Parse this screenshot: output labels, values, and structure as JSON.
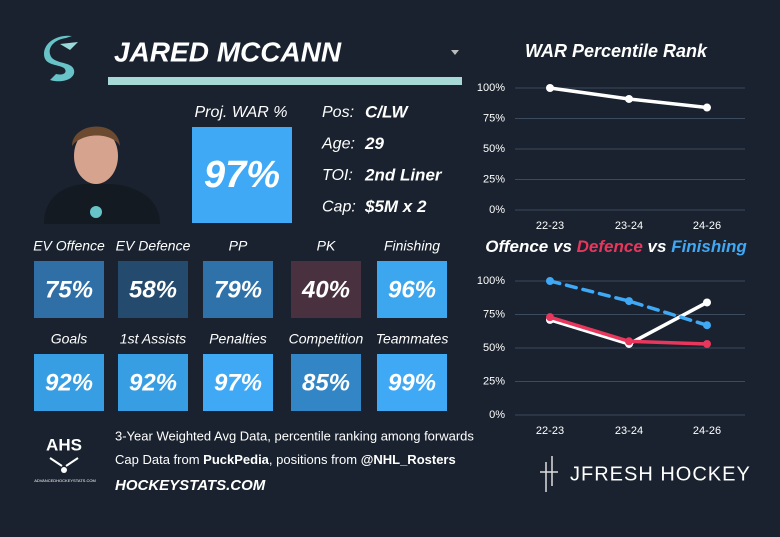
{
  "header": {
    "name": "JARED MCCANN"
  },
  "proj_war": {
    "label": "Proj. WAR %",
    "value": "97%"
  },
  "info": [
    {
      "label": "Pos:",
      "value": "C/LW"
    },
    {
      "label": "Age:",
      "value": "29"
    },
    {
      "label": "TOI:",
      "value": "2nd Liner"
    },
    {
      "label": "Cap:",
      "value": "$5M x 2"
    }
  ],
  "stats": [
    {
      "label": "EV Offence",
      "value": "75%",
      "color": "#2f6fa6"
    },
    {
      "label": "EV Defence",
      "value": "58%",
      "color": "#244a6e"
    },
    {
      "label": "PP",
      "value": "79%",
      "color": "#2f72aa"
    },
    {
      "label": "PK",
      "value": "40%",
      "color": "#4a3140"
    },
    {
      "label": "Finishing",
      "value": "96%",
      "color": "#3ca6ef"
    },
    {
      "label": "Goals",
      "value": "92%",
      "color": "#389ee4"
    },
    {
      "label": "1st Assists",
      "value": "92%",
      "color": "#389ee4"
    },
    {
      "label": "Penalties",
      "value": "97%",
      "color": "#3fa9f5"
    },
    {
      "label": "Competition",
      "value": "85%",
      "color": "#3386c6"
    },
    {
      "label": "Teammates",
      "value": "99%",
      "color": "#3fa9f5"
    }
  ],
  "footer": {
    "note": "3-Year Weighted Avg Data, percentile ranking among forwards",
    "credits": [
      "Cap Data from ",
      "PuckPedia",
      ", positions from ",
      "@NHL_Rosters"
    ],
    "site": "HOCKEYSTATS.COM",
    "ahs": "AHS",
    "ahs_small": "ADVANCEDHOCKEYSTATS.COM",
    "brand": "JFRESH HOCKEY"
  },
  "chart_data": [
    {
      "type": "line",
      "title": "WAR Percentile Rank",
      "categories": [
        "22-23",
        "23-24",
        "24-26"
      ],
      "values": [
        100,
        91,
        84
      ],
      "color": "#ffffff",
      "ylim": [
        0,
        100
      ],
      "grid": true,
      "yticks": [
        {
          "value": 0,
          "label": "0%"
        },
        {
          "value": 25,
          "label": "25%"
        },
        {
          "value": 50,
          "label": "50%"
        },
        {
          "value": 75,
          "label": "75%"
        },
        {
          "value": 100,
          "label": "100%"
        }
      ]
    },
    {
      "type": "line",
      "title_joiners": [
        "vs",
        "vs"
      ],
      "categories": [
        "22-23",
        "23-24",
        "24-26"
      ],
      "series": [
        {
          "name": "Offence",
          "color": "#ffffff",
          "values": [
            71,
            53,
            84
          ]
        },
        {
          "name": "Defence",
          "color": "#e8365d",
          "values": [
            73,
            55,
            53
          ]
        },
        {
          "name": "Finishing",
          "color": "#3fa9f5",
          "values": [
            100,
            85,
            67
          ],
          "dashed": true
        }
      ],
      "ylim": [
        0,
        100
      ],
      "grid": true,
      "yticks": [
        {
          "value": 0,
          "label": "0%"
        },
        {
          "value": 25,
          "label": "25%"
        },
        {
          "value": 50,
          "label": "50%"
        },
        {
          "value": 75,
          "label": "75%"
        },
        {
          "value": 100,
          "label": "100%"
        }
      ]
    }
  ]
}
